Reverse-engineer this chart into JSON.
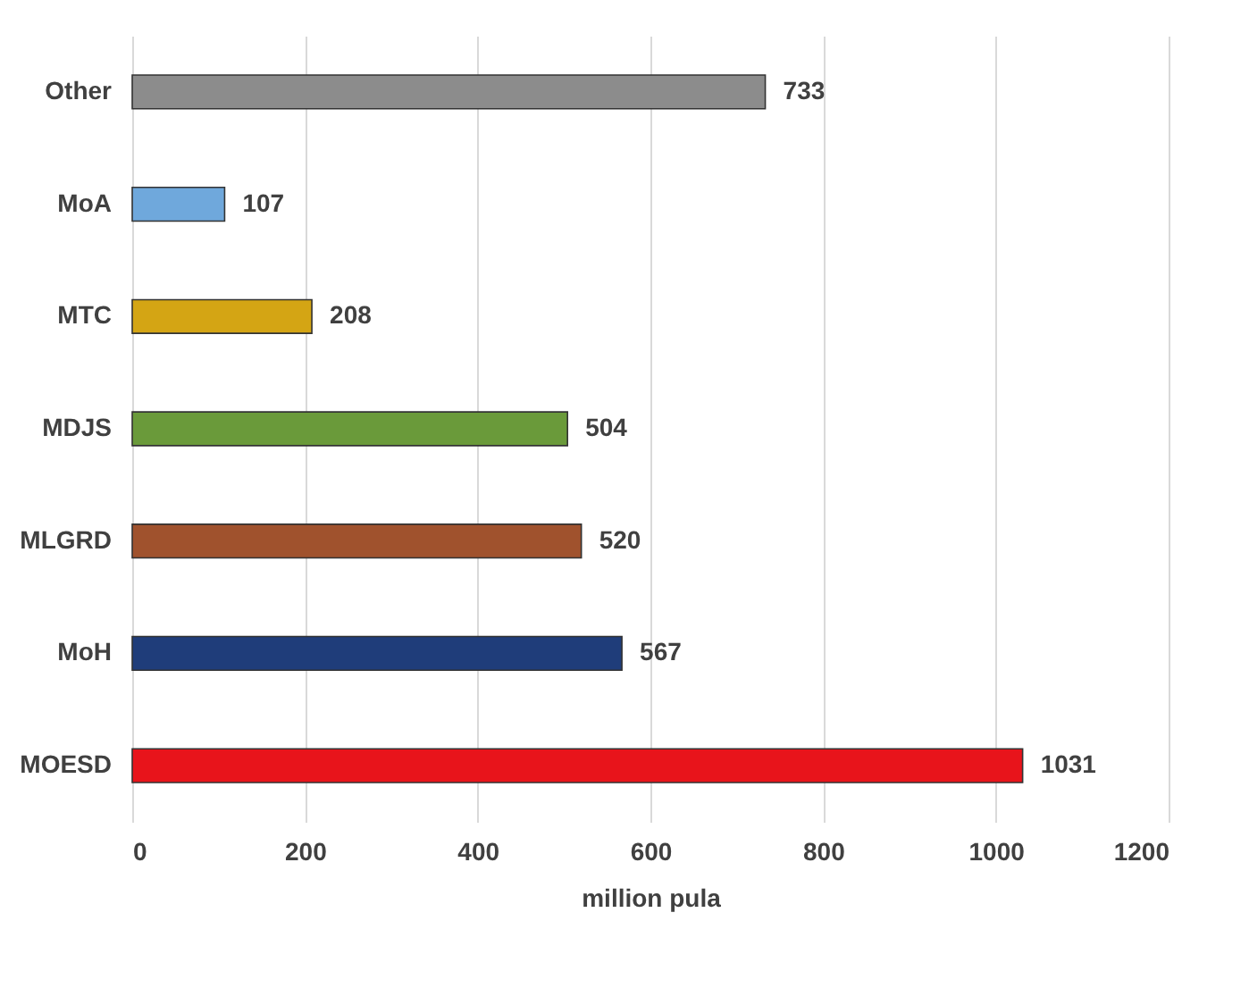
{
  "chart_data": {
    "type": "bar",
    "orientation": "horizontal",
    "xlabel": "million pula",
    "categories": [
      "Other",
      "MoA",
      "MTC",
      "MDJS",
      "MLGRD",
      "MoH",
      "MOESD"
    ],
    "values": [
      733,
      107,
      208,
      504,
      520,
      567,
      1031
    ],
    "colors": [
      "#8c8c8c",
      "#6fa8dc",
      "#d4a514",
      "#6a9a3a",
      "#a0522d",
      "#1f3d7a",
      "#e8141b"
    ],
    "xlim": [
      0,
      1200
    ],
    "xticks": [
      0,
      200,
      400,
      600,
      800,
      1000,
      1200
    ],
    "grid": "x",
    "data_labels": true
  }
}
